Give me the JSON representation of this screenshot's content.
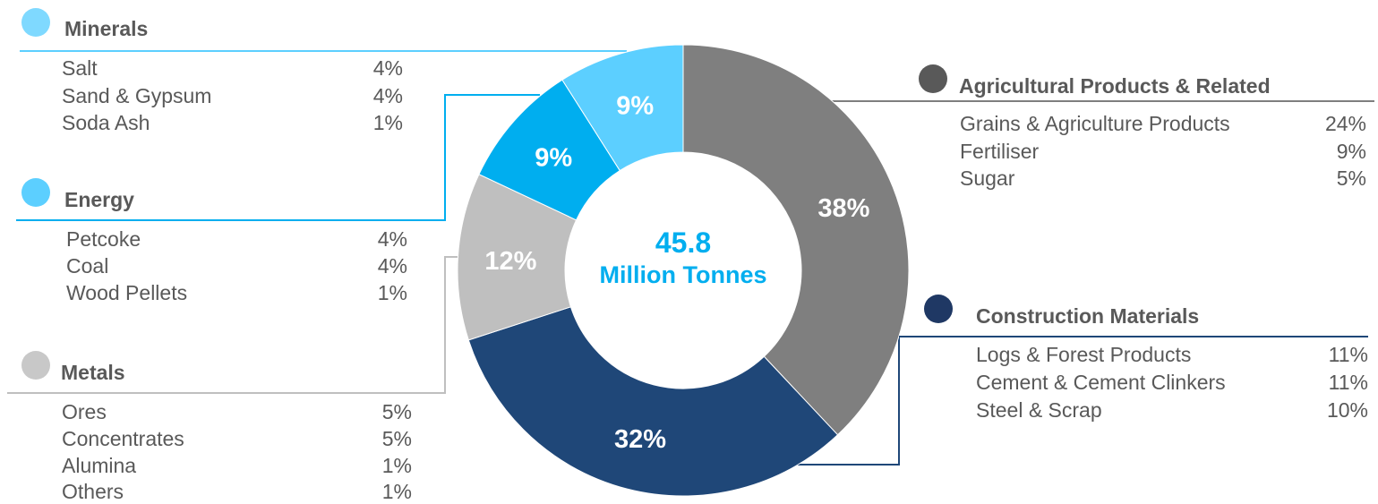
{
  "chart_data": {
    "type": "pie",
    "donut": true,
    "center_value": "45.8",
    "center_unit": "Million Tonnes",
    "slices": [
      {
        "label": "Agricultural Products & Related",
        "value": 38,
        "value_label": "38%",
        "color": "#7f7f7f"
      },
      {
        "label": "Construction Materials",
        "value": 32,
        "value_label": "32%",
        "color": "#1f4778"
      },
      {
        "label": "Metals",
        "value": 12,
        "value_label": "12%",
        "color": "#bfbfbf"
      },
      {
        "label": "Energy",
        "value": 9,
        "value_label": "9%",
        "color": "#00aeef"
      },
      {
        "label": "Minerals",
        "value": 9,
        "value_label": "9%",
        "color": "#5ccfff"
      }
    ]
  },
  "colors": {
    "center_text": "#00aeef",
    "minerals": "#7fd9ff",
    "energy": "#5ccfff",
    "metals": "#c8c8c8",
    "agricultural": "#595959",
    "construction": "#1f3864",
    "connector_minerals": "#5ccfff",
    "connector_energy": "#00aeef",
    "connector_metals": "#bfbfbf",
    "connector_agricultural": "#7f7f7f",
    "connector_construction": "#1f4778"
  },
  "legend": {
    "minerals": {
      "title": "Minerals",
      "items": [
        {
          "label": "Salt",
          "value": "4%"
        },
        {
          "label": "Sand & Gypsum",
          "value": "4%"
        },
        {
          "label": "Soda Ash",
          "value": "1%"
        }
      ]
    },
    "energy": {
      "title": "Energy",
      "items": [
        {
          "label": "Petcoke",
          "value": "4%"
        },
        {
          "label": "Coal",
          "value": "4%"
        },
        {
          "label": "Wood Pellets",
          "value": "1%"
        }
      ]
    },
    "metals": {
      "title": "Metals",
      "items": [
        {
          "label": "Ores",
          "value": "5%"
        },
        {
          "label": "Concentrates",
          "value": "5%"
        },
        {
          "label": "Alumina",
          "value": "1%"
        },
        {
          "label": "Others",
          "value": "1%"
        }
      ]
    },
    "agricultural": {
      "title": "Agricultural Products & Related",
      "items": [
        {
          "label": "Grains & Agriculture  Products",
          "value": "24%"
        },
        {
          "label": "Fertiliser",
          "value": "9%"
        },
        {
          "label": "Sugar",
          "value": "5%"
        }
      ]
    },
    "construction": {
      "title": "Construction Materials",
      "items": [
        {
          "label": "Logs & Forest Products",
          "value": "11%"
        },
        {
          "label": "Cement & Cement Clinkers",
          "value": "11%"
        },
        {
          "label": "Steel & Scrap",
          "value": "10%"
        }
      ]
    }
  }
}
